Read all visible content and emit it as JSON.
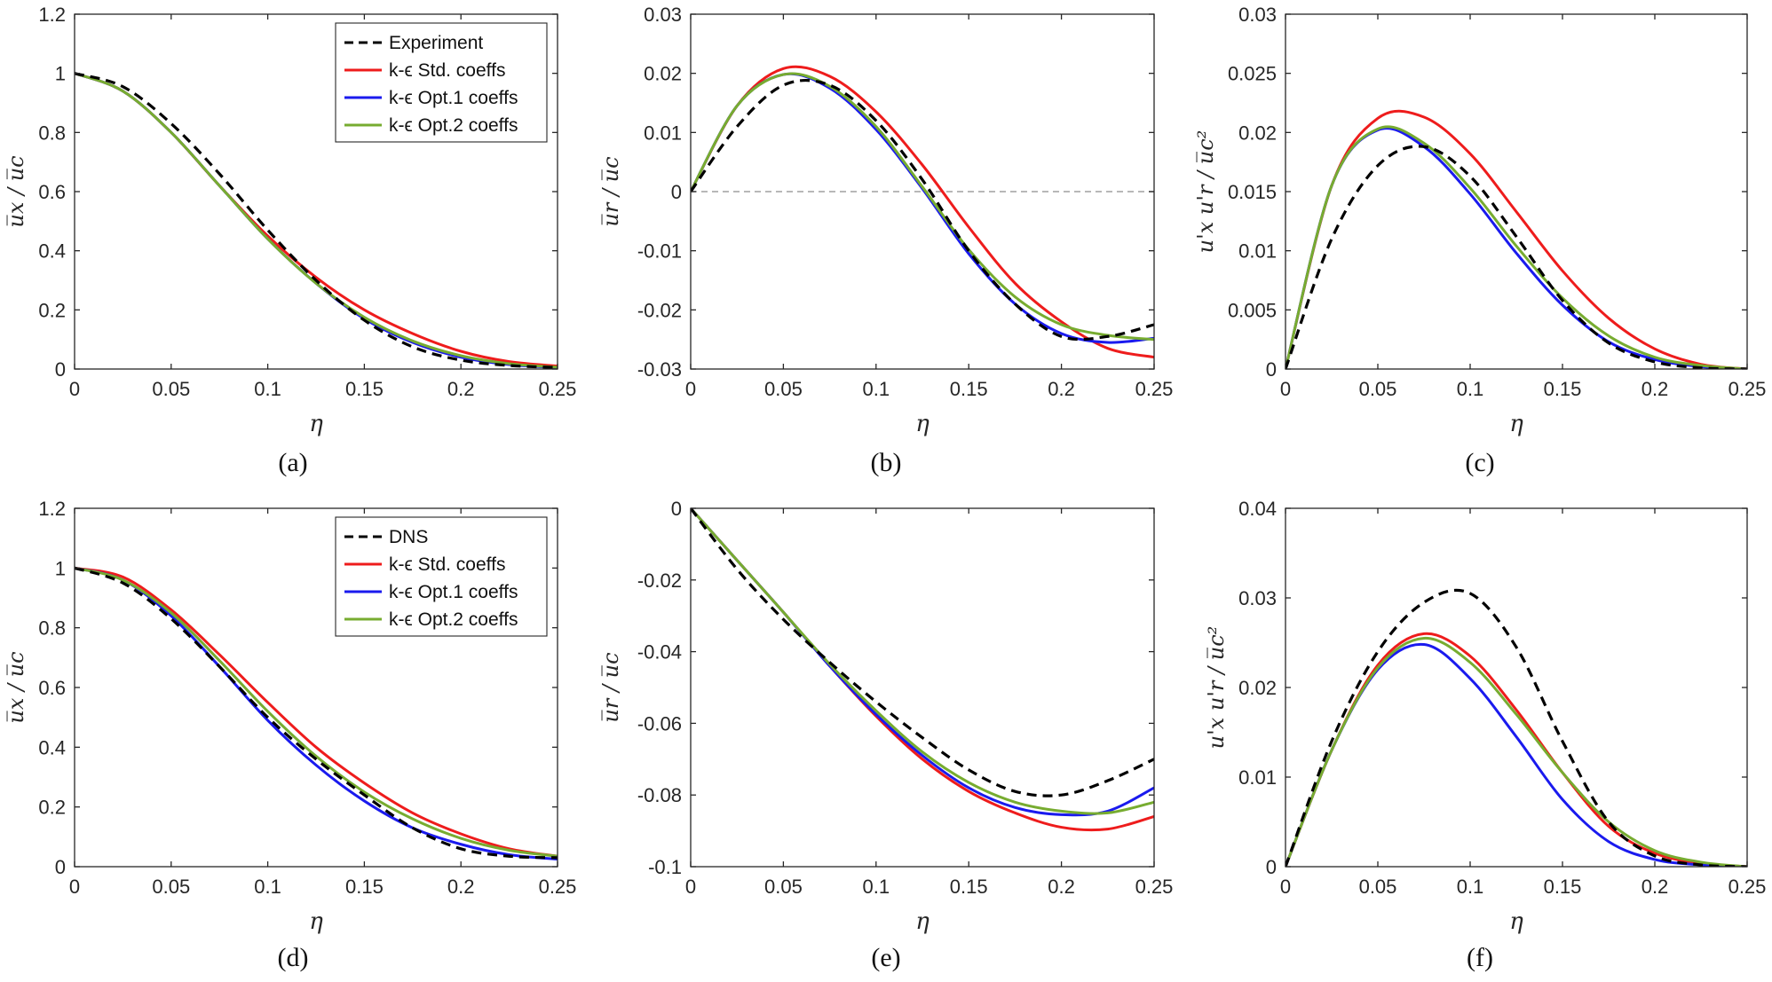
{
  "figure": {
    "colors": {
      "experiment": "#000000",
      "std": "#ee1c1c",
      "opt1": "#1a1aee",
      "opt2": "#77ac30",
      "axis": "#262626",
      "zero_line": "#a0a0a0"
    }
  },
  "chart_data": [
    {
      "type": "line",
      "caption": "(a)",
      "xlabel": "η",
      "ylabel": "u̅x / u̅c",
      "xlim": [
        0,
        0.25
      ],
      "ylim": [
        0,
        1.2
      ],
      "xticks": [
        0,
        0.05,
        0.1,
        0.15,
        0.2,
        0.25
      ],
      "xtick_labels": [
        "0",
        "0.05",
        "0.1",
        "0.15",
        "0.2",
        "0.25"
      ],
      "yticks": [
        0,
        0.2,
        0.4,
        0.6,
        0.8,
        1,
        1.2
      ],
      "ytick_labels": [
        "0",
        "0.2",
        "0.4",
        "0.6",
        "0.8",
        "1",
        "1.2"
      ],
      "legend": {
        "position": "top-right",
        "entries": [
          "Experiment",
          "k-ϵ Std. coeffs",
          "k-ϵ Opt.1 coeffs",
          "k-ϵ Opt.2 coeffs"
        ]
      },
      "zero_line": false,
      "x": [
        0,
        0.025,
        0.05,
        0.075,
        0.1,
        0.125,
        0.15,
        0.175,
        0.2,
        0.225,
        0.25
      ],
      "series": [
        {
          "name": "Experiment",
          "style": "dashed",
          "color_key": "experiment",
          "values": [
            1.0,
            0.955,
            0.83,
            0.66,
            0.47,
            0.3,
            0.165,
            0.075,
            0.03,
            0.012,
            0.005
          ]
        },
        {
          "name": "k-ϵ Std. coeffs",
          "style": "solid",
          "color_key": "std",
          "values": [
            1.0,
            0.94,
            0.8,
            0.62,
            0.45,
            0.31,
            0.2,
            0.12,
            0.06,
            0.025,
            0.01
          ]
        },
        {
          "name": "k-ϵ Opt.1 coeffs",
          "style": "solid",
          "color_key": "opt1",
          "values": [
            1.0,
            0.94,
            0.8,
            0.62,
            0.44,
            0.29,
            0.17,
            0.09,
            0.04,
            0.015,
            0.005
          ]
        },
        {
          "name": "k-ϵ Opt.2 coeffs",
          "style": "solid",
          "color_key": "opt2",
          "values": [
            1.0,
            0.94,
            0.8,
            0.62,
            0.44,
            0.29,
            0.175,
            0.095,
            0.045,
            0.018,
            0.006
          ]
        }
      ]
    },
    {
      "type": "line",
      "caption": "(b)",
      "xlabel": "η",
      "ylabel": "u̅r / u̅c",
      "xlim": [
        0,
        0.25
      ],
      "ylim": [
        -0.03,
        0.03
      ],
      "xticks": [
        0,
        0.05,
        0.1,
        0.15,
        0.2,
        0.25
      ],
      "xtick_labels": [
        "0",
        "0.05",
        "0.1",
        "0.15",
        "0.2",
        "0.25"
      ],
      "yticks": [
        -0.03,
        -0.02,
        -0.01,
        0,
        0.01,
        0.02,
        0.03
      ],
      "ytick_labels": [
        "-0.03",
        "-0.02",
        "-0.01",
        "0",
        "0.01",
        "0.02",
        "0.03"
      ],
      "legend": null,
      "zero_line": true,
      "x": [
        0,
        0.025,
        0.05,
        0.075,
        0.1,
        0.125,
        0.15,
        0.175,
        0.2,
        0.225,
        0.25
      ],
      "series": [
        {
          "name": "Experiment",
          "style": "dashed",
          "color_key": "experiment",
          "values": [
            0,
            0.011,
            0.018,
            0.018,
            0.012,
            0.002,
            -0.01,
            -0.019,
            -0.0245,
            -0.0245,
            -0.0225
          ]
        },
        {
          "name": "k-ϵ Std. coeffs",
          "style": "solid",
          "color_key": "std",
          "values": [
            0,
            0.0145,
            0.0208,
            0.0195,
            0.0135,
            0.0045,
            -0.006,
            -0.0155,
            -0.022,
            -0.0265,
            -0.028
          ]
        },
        {
          "name": "k-ϵ Opt.1 coeffs",
          "style": "solid",
          "color_key": "opt1",
          "values": [
            0,
            0.0145,
            0.0198,
            0.0175,
            0.0105,
            0.0005,
            -0.0105,
            -0.019,
            -0.024,
            -0.0255,
            -0.0248
          ]
        },
        {
          "name": "k-ϵ Opt.2 coeffs",
          "style": "solid",
          "color_key": "opt2",
          "values": [
            0,
            0.0145,
            0.0198,
            0.0178,
            0.011,
            0.0008,
            -0.0098,
            -0.0178,
            -0.0225,
            -0.0243,
            -0.025
          ]
        }
      ]
    },
    {
      "type": "line",
      "caption": "(c)",
      "xlabel": "η",
      "ylabel": "u'x u'r / u̅c²",
      "xlim": [
        0,
        0.25
      ],
      "ylim": [
        0,
        0.03
      ],
      "xticks": [
        0,
        0.05,
        0.1,
        0.15,
        0.2,
        0.25
      ],
      "xtick_labels": [
        "0",
        "0.05",
        "0.1",
        "0.15",
        "0.2",
        "0.25"
      ],
      "yticks": [
        0,
        0.005,
        0.01,
        0.015,
        0.02,
        0.025,
        0.03
      ],
      "ytick_labels": [
        "0",
        "0.005",
        "0.01",
        "0.015",
        "0.02",
        "0.025",
        "0.03"
      ],
      "legend": null,
      "zero_line": false,
      "x": [
        0,
        0.025,
        0.05,
        0.075,
        0.1,
        0.125,
        0.15,
        0.175,
        0.2,
        0.225,
        0.25
      ],
      "series": [
        {
          "name": "Experiment",
          "style": "dashed",
          "color_key": "experiment",
          "values": [
            0,
            0.011,
            0.0172,
            0.0188,
            0.0163,
            0.0112,
            0.0058,
            0.0022,
            0.0006,
            0.0001,
            0.0
          ]
        },
        {
          "name": "k-ϵ Std. coeffs",
          "style": "solid",
          "color_key": "std",
          "values": [
            0,
            0.0155,
            0.0212,
            0.0213,
            0.0182,
            0.0133,
            0.0083,
            0.0043,
            0.0017,
            0.0004,
            0.0
          ]
        },
        {
          "name": "k-ϵ Opt.1 coeffs",
          "style": "solid",
          "color_key": "opt1",
          "values": [
            0,
            0.0155,
            0.0202,
            0.0188,
            0.0148,
            0.0098,
            0.0054,
            0.0023,
            0.0008,
            0.0002,
            0.0
          ]
        },
        {
          "name": "k-ϵ Opt.2 coeffs",
          "style": "solid",
          "color_key": "opt2",
          "values": [
            0,
            0.0155,
            0.0203,
            0.0191,
            0.0153,
            0.0104,
            0.006,
            0.0028,
            0.001,
            0.0003,
            0.0
          ]
        }
      ]
    },
    {
      "type": "line",
      "caption": "(d)",
      "xlabel": "η",
      "ylabel": "u̅x / u̅c",
      "xlim": [
        0,
        0.25
      ],
      "ylim": [
        0,
        1.2
      ],
      "xticks": [
        0,
        0.05,
        0.1,
        0.15,
        0.2,
        0.25
      ],
      "xtick_labels": [
        "0",
        "0.05",
        "0.1",
        "0.15",
        "0.2",
        "0.25"
      ],
      "yticks": [
        0,
        0.2,
        0.4,
        0.6,
        0.8,
        1,
        1.2
      ],
      "ytick_labels": [
        "0",
        "0.2",
        "0.4",
        "0.6",
        "0.8",
        "1",
        "1.2"
      ],
      "legend": {
        "position": "top-right",
        "entries": [
          "DNS",
          "k-ϵ Std. coeffs",
          "k-ϵ Opt.1 coeffs",
          "k-ϵ Opt.2 coeffs"
        ]
      },
      "zero_line": false,
      "x": [
        0,
        0.025,
        0.05,
        0.075,
        0.1,
        0.125,
        0.15,
        0.175,
        0.2,
        0.225,
        0.25
      ],
      "series": [
        {
          "name": "DNS",
          "style": "dashed",
          "color_key": "experiment",
          "values": [
            1.0,
            0.95,
            0.83,
            0.67,
            0.5,
            0.36,
            0.24,
            0.13,
            0.06,
            0.035,
            0.03
          ]
        },
        {
          "name": "k-ϵ Std. coeffs",
          "style": "solid",
          "color_key": "std",
          "values": [
            1.0,
            0.97,
            0.86,
            0.71,
            0.55,
            0.4,
            0.28,
            0.18,
            0.11,
            0.06,
            0.035
          ]
        },
        {
          "name": "k-ϵ Opt.1 coeffs",
          "style": "solid",
          "color_key": "opt1",
          "values": [
            1.0,
            0.96,
            0.84,
            0.67,
            0.49,
            0.34,
            0.22,
            0.13,
            0.075,
            0.04,
            0.025
          ]
        },
        {
          "name": "k-ϵ Opt.2 coeffs",
          "style": "solid",
          "color_key": "opt2",
          "values": [
            1.0,
            0.96,
            0.85,
            0.69,
            0.52,
            0.37,
            0.25,
            0.16,
            0.095,
            0.055,
            0.035
          ]
        }
      ]
    },
    {
      "type": "line",
      "caption": "(e)",
      "xlabel": "η",
      "ylabel": "u̅r / u̅c",
      "xlim": [
        0,
        0.25
      ],
      "ylim": [
        -0.1,
        0
      ],
      "xticks": [
        0,
        0.05,
        0.1,
        0.15,
        0.2,
        0.25
      ],
      "xtick_labels": [
        "0",
        "0.05",
        "0.1",
        "0.15",
        "0.2",
        "0.25"
      ],
      "yticks": [
        -0.1,
        -0.08,
        -0.06,
        -0.04,
        -0.02,
        0
      ],
      "ytick_labels": [
        "-0.1",
        "-0.08",
        "-0.06",
        "-0.04",
        "-0.02",
        "0"
      ],
      "legend": null,
      "zero_line": false,
      "x": [
        0,
        0.025,
        0.05,
        0.075,
        0.1,
        0.125,
        0.15,
        0.175,
        0.2,
        0.225,
        0.25
      ],
      "series": [
        {
          "name": "DNS",
          "style": "dashed",
          "color_key": "experiment",
          "values": [
            0,
            -0.017,
            -0.031,
            -0.043,
            -0.054,
            -0.064,
            -0.073,
            -0.079,
            -0.08,
            -0.076,
            -0.07
          ]
        },
        {
          "name": "k-ϵ Std. coeffs",
          "style": "solid",
          "color_key": "std",
          "values": [
            0,
            -0.0145,
            -0.029,
            -0.044,
            -0.058,
            -0.07,
            -0.079,
            -0.085,
            -0.089,
            -0.0895,
            -0.086
          ]
        },
        {
          "name": "k-ϵ Opt.1 coeffs",
          "style": "solid",
          "color_key": "opt1",
          "values": [
            0,
            -0.0145,
            -0.029,
            -0.044,
            -0.0575,
            -0.069,
            -0.078,
            -0.0835,
            -0.0855,
            -0.0845,
            -0.078
          ]
        },
        {
          "name": "k-ϵ Opt.2 coeffs",
          "style": "solid",
          "color_key": "opt2",
          "values": [
            0,
            -0.0145,
            -0.029,
            -0.0435,
            -0.0565,
            -0.068,
            -0.0765,
            -0.082,
            -0.0845,
            -0.085,
            -0.082
          ]
        }
      ]
    },
    {
      "type": "line",
      "caption": "(f)",
      "xlabel": "η",
      "ylabel": "u'x u'r / u̅c²",
      "xlim": [
        0,
        0.25
      ],
      "ylim": [
        0,
        0.04
      ],
      "xticks": [
        0,
        0.05,
        0.1,
        0.15,
        0.2,
        0.25
      ],
      "xtick_labels": [
        "0",
        "0.05",
        "0.1",
        "0.15",
        "0.2",
        "0.25"
      ],
      "yticks": [
        0,
        0.01,
        0.02,
        0.03,
        0.04
      ],
      "ytick_labels": [
        "0",
        "0.01",
        "0.02",
        "0.03",
        "0.04"
      ],
      "legend": null,
      "zero_line": false,
      "x": [
        0,
        0.025,
        0.05,
        0.075,
        0.1,
        0.125,
        0.15,
        0.175,
        0.2,
        0.225,
        0.25
      ],
      "series": [
        {
          "name": "DNS",
          "style": "dashed",
          "color_key": "experiment",
          "values": [
            0,
            0.014,
            0.024,
            0.0295,
            0.0305,
            0.0245,
            0.014,
            0.005,
            0.0012,
            0.0002,
            0.0
          ]
        },
        {
          "name": "k-ϵ Std. coeffs",
          "style": "solid",
          "color_key": "std",
          "values": [
            0,
            0.013,
            0.0225,
            0.026,
            0.0235,
            0.0175,
            0.0105,
            0.0045,
            0.0015,
            0.0004,
            0.0
          ]
        },
        {
          "name": "k-ϵ Opt.1 coeffs",
          "style": "solid",
          "color_key": "opt1",
          "values": [
            0,
            0.013,
            0.022,
            0.0248,
            0.021,
            0.0145,
            0.0075,
            0.0028,
            0.0008,
            0.0002,
            0.0
          ]
        },
        {
          "name": "k-ϵ Opt.2 coeffs",
          "style": "solid",
          "color_key": "opt2",
          "values": [
            0,
            0.013,
            0.0222,
            0.0255,
            0.0228,
            0.017,
            0.0105,
            0.005,
            0.0018,
            0.0005,
            0.0
          ]
        }
      ]
    }
  ]
}
